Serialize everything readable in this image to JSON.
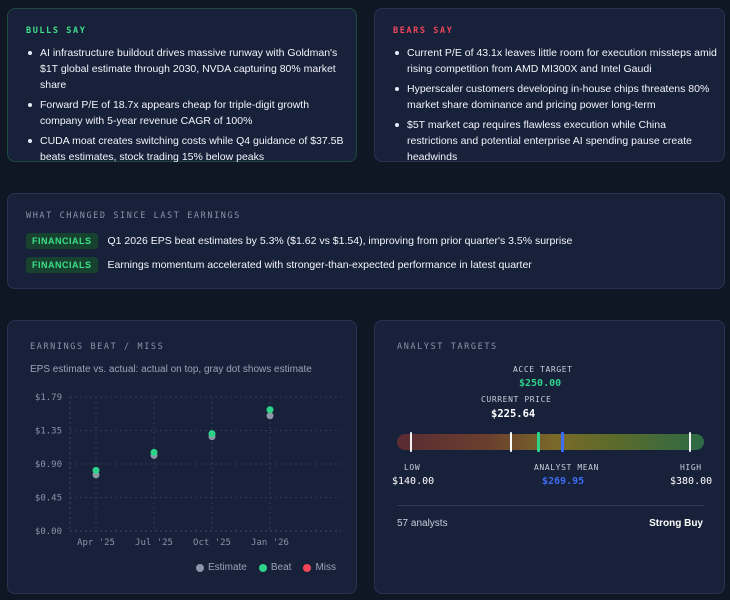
{
  "bulls": {
    "title": "BULLS SAY",
    "items": [
      "AI infrastructure buildout drives massive runway with Goldman's $1T global estimate through 2030, NVDA capturing 80% market share",
      "Forward P/E of 18.7x appears cheap for triple-digit growth company with 5-year revenue CAGR of 100%",
      "CUDA moat creates switching costs while Q4 guidance of $37.5B beats estimates, stock trading 15% below peaks"
    ]
  },
  "bears": {
    "title": "BEARS SAY",
    "items": [
      "Current P/E of 43.1x leaves little room for execution missteps amid rising competition from AMD MI300X and Intel Gaudi",
      "Hyperscaler customers developing in-house chips threatens 80% market share dominance and pricing power long-term",
      "$5T market cap requires flawless execution while China restrictions and potential enterprise AI spending pause create headwinds"
    ]
  },
  "changes": {
    "title": "WHAT CHANGED SINCE LAST EARNINGS",
    "items": [
      {
        "tag": "FINANCIALS",
        "text": "Q1 2026 EPS beat estimates by 5.3% ($1.62 vs $1.54), improving from prior quarter's 3.5% surprise"
      },
      {
        "tag": "FINANCIALS",
        "text": "Earnings momentum accelerated with stronger-than-expected performance in latest quarter"
      }
    ]
  },
  "earnings": {
    "title": "EARNINGS BEAT / MISS",
    "subtitle": "EPS estimate vs. actual: actual on top, gray dot shows estimate",
    "legend": {
      "estimate": "Estimate",
      "beat": "Beat",
      "miss": "Miss"
    },
    "colors": {
      "estimate": "#8e95a6",
      "beat": "#2ed38a",
      "miss": "#f0455a"
    }
  },
  "chart_data": {
    "type": "scatter",
    "categories": [
      "Apr '25",
      "Jul '25",
      "Oct '25",
      "Jan '26"
    ],
    "series": [
      {
        "name": "Estimate",
        "values": [
          0.75,
          1.01,
          1.26,
          1.54
        ]
      },
      {
        "name": "Beat",
        "values": [
          0.81,
          1.05,
          1.3,
          1.62
        ]
      }
    ],
    "yticks": [
      "$1.79",
      "$1.35",
      "$0.90",
      "$0.45",
      "$0.00"
    ],
    "ylim": [
      0,
      1.79
    ],
    "grid": true,
    "legend_position": "bottom-right"
  },
  "targets": {
    "title": "ANALYST TARGETS",
    "acce_label": "ACCE TARGET",
    "acce_value": "$250.00",
    "current_label": "CURRENT PRICE",
    "current_value": "$225.64",
    "low_label": "LOW",
    "low_value": "$140.00",
    "mean_label": "ANALYST MEAN",
    "mean_value": "$269.95",
    "high_label": "HIGH",
    "high_value": "$380.00",
    "low": 140.0,
    "high": 380.0,
    "current": 225.64,
    "acce": 250.0,
    "mean": 269.95,
    "analysts": "57 analysts",
    "rating": "Strong Buy"
  }
}
